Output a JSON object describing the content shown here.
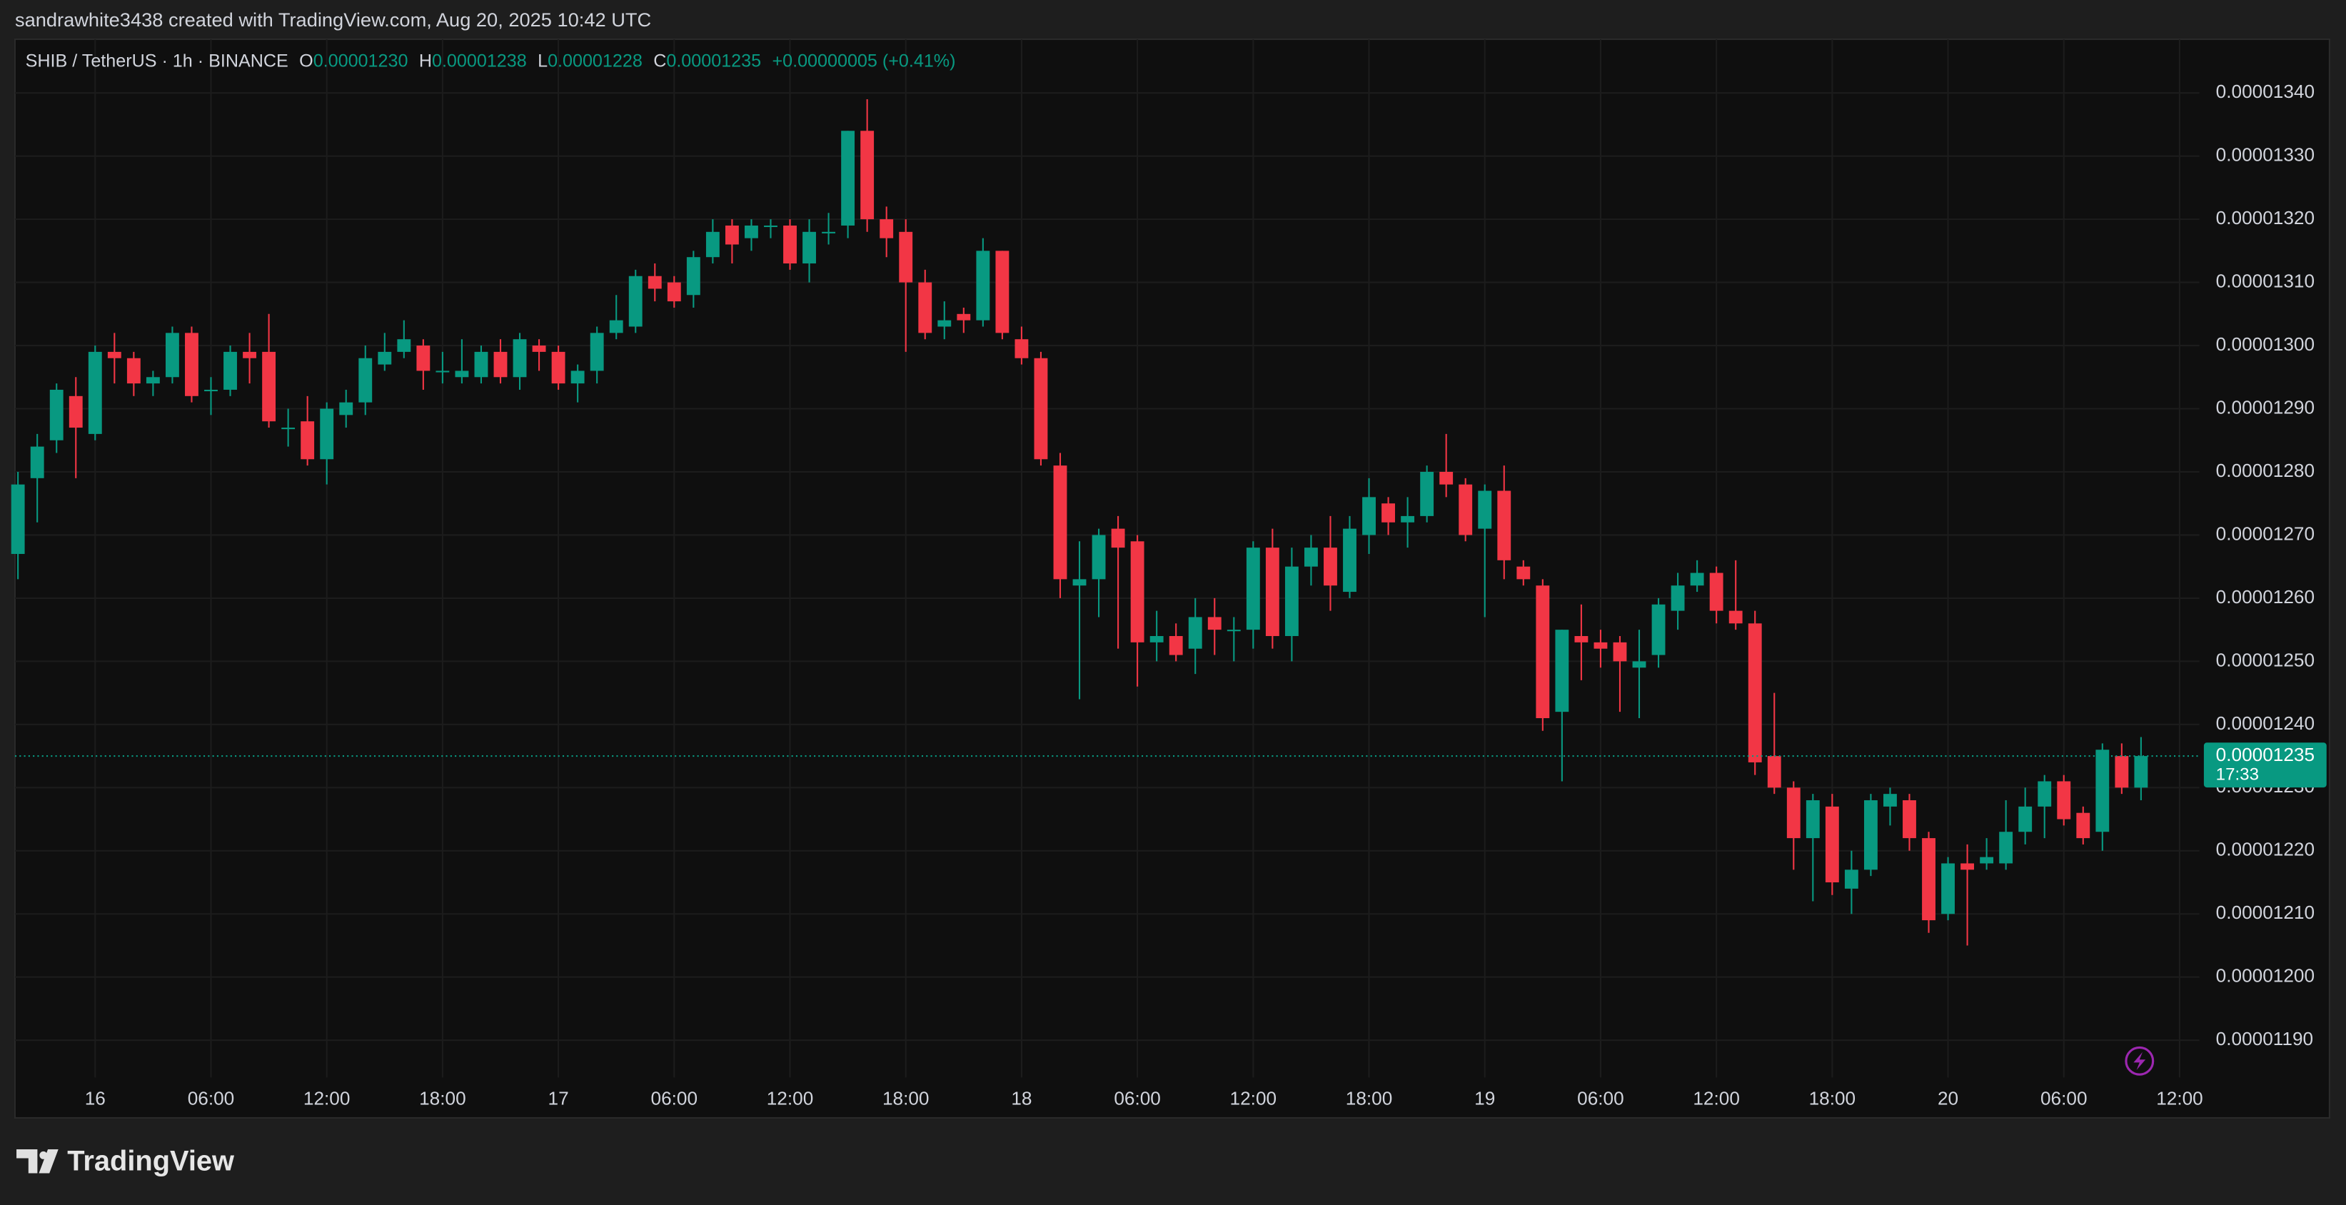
{
  "header": {
    "attribution": "sandrawhite3438 created with TradingView.com, Aug 20, 2025 10:42 UTC"
  },
  "footer": {
    "brand": "TradingView"
  },
  "chart_data": {
    "type": "candlestick",
    "legend": {
      "symbol": "SHIB / TetherUS · 1h · BINANCE",
      "open_label": "O",
      "open": "0.00001230",
      "high_label": "H",
      "high": "0.00001238",
      "low_label": "L",
      "low": "0.00001228",
      "close_label": "C",
      "close": "0.00001235",
      "change": "+0.00000005 (+0.41%)"
    },
    "up_color": "#089981",
    "down_color": "#f23645",
    "grid": true,
    "last_price": {
      "value": 1.235e-05,
      "label": "0.00001235"
    },
    "countdown": "17:33",
    "ylim": [
      1.1841e-05,
      1.3485e-05
    ],
    "yticks": [
      {
        "value": 1.19e-05,
        "label": "0.00001190"
      },
      {
        "value": 1.2e-05,
        "label": "0.00001200"
      },
      {
        "value": 1.21e-05,
        "label": "0.00001210"
      },
      {
        "value": 1.22e-05,
        "label": "0.00001220"
      },
      {
        "value": 1.23e-05,
        "label": "0.00001230"
      },
      {
        "value": 1.24e-05,
        "label": "0.00001240"
      },
      {
        "value": 1.25e-05,
        "label": "0.00001250"
      },
      {
        "value": 1.26e-05,
        "label": "0.00001260"
      },
      {
        "value": 1.27e-05,
        "label": "0.00001270"
      },
      {
        "value": 1.28e-05,
        "label": "0.00001280"
      },
      {
        "value": 1.29e-05,
        "label": "0.00001290"
      },
      {
        "value": 1.3e-05,
        "label": "0.00001300"
      },
      {
        "value": 1.31e-05,
        "label": "0.00001310"
      },
      {
        "value": 1.32e-05,
        "label": "0.00001320"
      },
      {
        "value": 1.33e-05,
        "label": "0.00001330"
      },
      {
        "value": 1.34e-05,
        "label": "0.00001340"
      }
    ],
    "categories": [
      null,
      null,
      null,
      null,
      "16",
      null,
      null,
      null,
      null,
      null,
      "06:00",
      null,
      null,
      null,
      null,
      null,
      "12:00",
      null,
      null,
      null,
      null,
      null,
      "18:00",
      null,
      null,
      null,
      null,
      null,
      "17",
      null,
      null,
      null,
      null,
      null,
      "06:00",
      null,
      null,
      null,
      null,
      null,
      "12:00",
      null,
      null,
      null,
      null,
      null,
      "18:00",
      null,
      null,
      null,
      null,
      null,
      "18",
      null,
      null,
      null,
      null,
      null,
      "06:00",
      null,
      null,
      null,
      null,
      null,
      "12:00",
      null,
      null,
      null,
      null,
      null,
      "18:00",
      null,
      null,
      null,
      null,
      null,
      "19",
      null,
      null,
      null,
      null,
      null,
      "06:00",
      null,
      null,
      null,
      null,
      null,
      "12:00",
      null,
      null,
      null,
      null,
      null,
      "18:00",
      null,
      null,
      null,
      null,
      null,
      "20",
      null,
      null,
      null,
      null,
      null,
      "06:00",
      null,
      null,
      null,
      null,
      null,
      "12:00"
    ],
    "open": [
      1.267e-05,
      1.279e-05,
      1.285e-05,
      1.292e-05,
      1.286e-05,
      1.299e-05,
      1.298e-05,
      1.294e-05,
      1.295e-05,
      1.302e-05,
      1.293e-05,
      1.293e-05,
      1.299e-05,
      1.299e-05,
      1.287e-05,
      1.288e-05,
      1.282e-05,
      1.289e-05,
      1.291e-05,
      1.297e-05,
      1.299e-05,
      1.3e-05,
      1.296e-05,
      1.295e-05,
      1.295e-05,
      1.299e-05,
      1.295e-05,
      1.3e-05,
      1.299e-05,
      1.294e-05,
      1.296e-05,
      1.302e-05,
      1.303e-05,
      1.311e-05,
      1.31e-05,
      1.308e-05,
      1.314e-05,
      1.319e-05,
      1.317e-05,
      1.319e-05,
      1.319e-05,
      1.313e-05,
      1.318e-05,
      1.319e-05,
      1.334e-05,
      1.32e-05,
      1.318e-05,
      1.31e-05,
      1.303e-05,
      1.305e-05,
      1.304e-05,
      1.315e-05,
      1.301e-05,
      1.298e-05,
      1.281e-05,
      1.262e-05,
      1.263e-05,
      1.271e-05,
      1.269e-05,
      1.253e-05,
      1.254e-05,
      1.252e-05,
      1.257e-05,
      1.255e-05,
      1.255e-05,
      1.268e-05,
      1.254e-05,
      1.265e-05,
      1.268e-05,
      1.261e-05,
      1.27e-05,
      1.275e-05,
      1.272e-05,
      1.273e-05,
      1.28e-05,
      1.278e-05,
      1.271e-05,
      1.277e-05,
      1.265e-05,
      1.262e-05,
      1.242e-05,
      1.254e-05,
      1.253e-05,
      1.253e-05,
      1.249e-05,
      1.251e-05,
      1.258e-05,
      1.262e-05,
      1.264e-05,
      1.258e-05,
      1.256e-05,
      1.235e-05,
      1.23e-05,
      1.222e-05,
      1.227e-05,
      1.214e-05,
      1.217e-05,
      1.227e-05,
      1.228e-05,
      1.222e-05,
      1.21e-05,
      1.218e-05,
      1.218e-05,
      1.218e-05,
      1.223e-05,
      1.227e-05,
      1.231e-05,
      1.226e-05,
      1.223e-05,
      1.235e-05,
      1.23e-05,
      null,
      null
    ],
    "high": [
      1.28e-05,
      1.286e-05,
      1.294e-05,
      1.295e-05,
      1.3e-05,
      1.302e-05,
      1.299e-05,
      1.296e-05,
      1.303e-05,
      1.303e-05,
      1.295e-05,
      1.3e-05,
      1.302e-05,
      1.305e-05,
      1.29e-05,
      1.292e-05,
      1.291e-05,
      1.293e-05,
      1.3e-05,
      1.302e-05,
      1.304e-05,
      1.301e-05,
      1.299e-05,
      1.301e-05,
      1.3e-05,
      1.301e-05,
      1.302e-05,
      1.301e-05,
      1.3e-05,
      1.297e-05,
      1.303e-05,
      1.308e-05,
      1.312e-05,
      1.313e-05,
      1.311e-05,
      1.315e-05,
      1.32e-05,
      1.32e-05,
      1.32e-05,
      1.32e-05,
      1.32e-05,
      1.32e-05,
      1.321e-05,
      1.334e-05,
      1.339e-05,
      1.322e-05,
      1.32e-05,
      1.312e-05,
      1.307e-05,
      1.306e-05,
      1.317e-05,
      1.315e-05,
      1.303e-05,
      1.299e-05,
      1.283e-05,
      1.269e-05,
      1.271e-05,
      1.273e-05,
      1.27e-05,
      1.258e-05,
      1.256e-05,
      1.26e-05,
      1.26e-05,
      1.257e-05,
      1.269e-05,
      1.271e-05,
      1.268e-05,
      1.27e-05,
      1.273e-05,
      1.273e-05,
      1.279e-05,
      1.276e-05,
      1.276e-05,
      1.281e-05,
      1.286e-05,
      1.279e-05,
      1.278e-05,
      1.281e-05,
      1.266e-05,
      1.263e-05,
      1.255e-05,
      1.259e-05,
      1.255e-05,
      1.254e-05,
      1.255e-05,
      1.26e-05,
      1.264e-05,
      1.266e-05,
      1.265e-05,
      1.266e-05,
      1.258e-05,
      1.245e-05,
      1.231e-05,
      1.229e-05,
      1.229e-05,
      1.22e-05,
      1.229e-05,
      1.23e-05,
      1.229e-05,
      1.223e-05,
      1.219e-05,
      1.221e-05,
      1.222e-05,
      1.228e-05,
      1.23e-05,
      1.232e-05,
      1.232e-05,
      1.227e-05,
      1.237e-05,
      1.237e-05,
      1.238e-05,
      null,
      null
    ],
    "low": [
      1.263e-05,
      1.272e-05,
      1.283e-05,
      1.279e-05,
      1.285e-05,
      1.294e-05,
      1.292e-05,
      1.292e-05,
      1.294e-05,
      1.291e-05,
      1.289e-05,
      1.292e-05,
      1.294e-05,
      1.287e-05,
      1.284e-05,
      1.281e-05,
      1.278e-05,
      1.287e-05,
      1.289e-05,
      1.296e-05,
      1.298e-05,
      1.293e-05,
      1.294e-05,
      1.294e-05,
      1.294e-05,
      1.294e-05,
      1.293e-05,
      1.296e-05,
      1.293e-05,
      1.291e-05,
      1.294e-05,
      1.301e-05,
      1.302e-05,
      1.307e-05,
      1.306e-05,
      1.306e-05,
      1.313e-05,
      1.313e-05,
      1.315e-05,
      1.317e-05,
      1.312e-05,
      1.31e-05,
      1.316e-05,
      1.317e-05,
      1.318e-05,
      1.314e-05,
      1.299e-05,
      1.301e-05,
      1.301e-05,
      1.302e-05,
      1.303e-05,
      1.301e-05,
      1.297e-05,
      1.281e-05,
      1.26e-05,
      1.244e-05,
      1.257e-05,
      1.252e-05,
      1.246e-05,
      1.25e-05,
      1.25e-05,
      1.248e-05,
      1.251e-05,
      1.25e-05,
      1.252e-05,
      1.252e-05,
      1.25e-05,
      1.262e-05,
      1.258e-05,
      1.26e-05,
      1.267e-05,
      1.27e-05,
      1.268e-05,
      1.272e-05,
      1.276e-05,
      1.269e-05,
      1.257e-05,
      1.263e-05,
      1.262e-05,
      1.239e-05,
      1.231e-05,
      1.247e-05,
      1.249e-05,
      1.242e-05,
      1.241e-05,
      1.249e-05,
      1.255e-05,
      1.261e-05,
      1.256e-05,
      1.255e-05,
      1.232e-05,
      1.229e-05,
      1.217e-05,
      1.212e-05,
      1.213e-05,
      1.21e-05,
      1.216e-05,
      1.224e-05,
      1.22e-05,
      1.207e-05,
      1.209e-05,
      1.205e-05,
      1.217e-05,
      1.217e-05,
      1.221e-05,
      1.222e-05,
      1.224e-05,
      1.221e-05,
      1.22e-05,
      1.229e-05,
      1.228e-05,
      null,
      null
    ],
    "close": [
      1.278e-05,
      1.284e-05,
      1.293e-05,
      1.287e-05,
      1.299e-05,
      1.298e-05,
      1.294e-05,
      1.295e-05,
      1.302e-05,
      1.292e-05,
      1.293e-05,
      1.299e-05,
      1.298e-05,
      1.288e-05,
      1.287e-05,
      1.282e-05,
      1.29e-05,
      1.291e-05,
      1.298e-05,
      1.299e-05,
      1.301e-05,
      1.296e-05,
      1.296e-05,
      1.296e-05,
      1.299e-05,
      1.295e-05,
      1.301e-05,
      1.299e-05,
      1.294e-05,
      1.296e-05,
      1.302e-05,
      1.304e-05,
      1.311e-05,
      1.309e-05,
      1.307e-05,
      1.314e-05,
      1.318e-05,
      1.316e-05,
      1.319e-05,
      1.319e-05,
      1.313e-05,
      1.318e-05,
      1.318e-05,
      1.334e-05,
      1.32e-05,
      1.317e-05,
      1.31e-05,
      1.302e-05,
      1.304e-05,
      1.304e-05,
      1.315e-05,
      1.302e-05,
      1.298e-05,
      1.282e-05,
      1.263e-05,
      1.263e-05,
      1.27e-05,
      1.268e-05,
      1.253e-05,
      1.254e-05,
      1.251e-05,
      1.257e-05,
      1.255e-05,
      1.255e-05,
      1.268e-05,
      1.254e-05,
      1.265e-05,
      1.268e-05,
      1.262e-05,
      1.271e-05,
      1.276e-05,
      1.272e-05,
      1.273e-05,
      1.28e-05,
      1.278e-05,
      1.27e-05,
      1.277e-05,
      1.266e-05,
      1.263e-05,
      1.241e-05,
      1.255e-05,
      1.253e-05,
      1.252e-05,
      1.25e-05,
      1.25e-05,
      1.259e-05,
      1.262e-05,
      1.264e-05,
      1.258e-05,
      1.256e-05,
      1.234e-05,
      1.23e-05,
      1.222e-05,
      1.228e-05,
      1.215e-05,
      1.217e-05,
      1.228e-05,
      1.229e-05,
      1.222e-05,
      1.209e-05,
      1.218e-05,
      1.217e-05,
      1.219e-05,
      1.223e-05,
      1.227e-05,
      1.231e-05,
      1.225e-05,
      1.222e-05,
      1.236e-05,
      1.23e-05,
      1.235e-05,
      null,
      null
    ]
  }
}
